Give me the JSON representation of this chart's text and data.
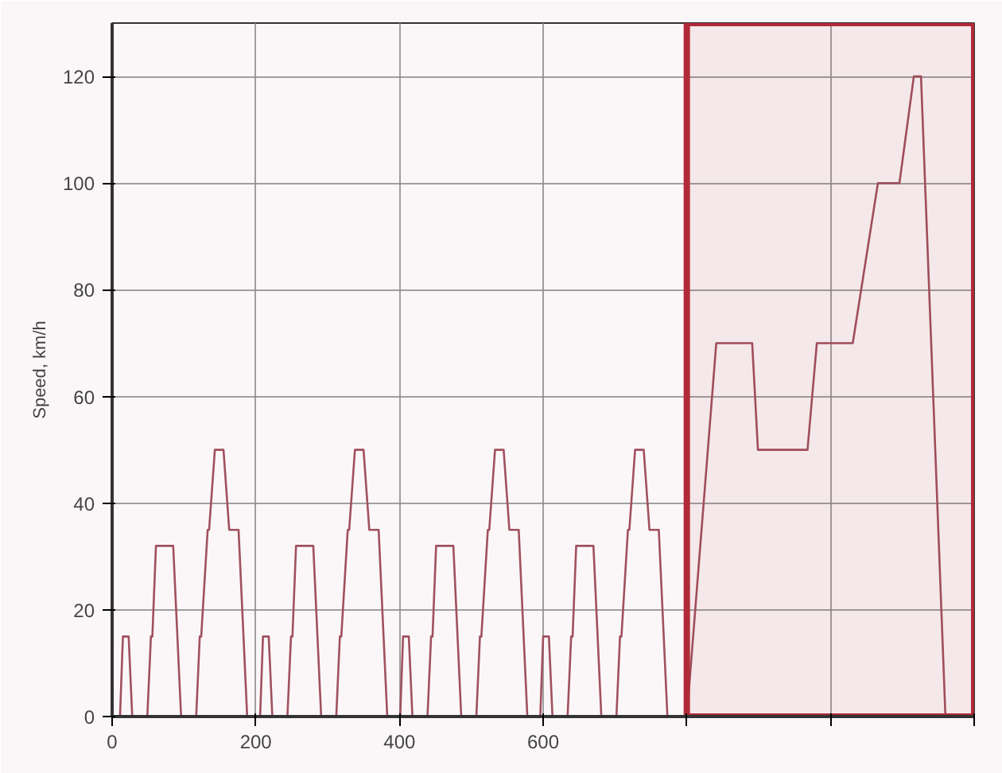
{
  "chart_data": {
    "type": "line",
    "ylabel": "Speed, km/h",
    "x": [
      0,
      11,
      15,
      23,
      28,
      49,
      54,
      56,
      61,
      85,
      96,
      117,
      122,
      124,
      133,
      135,
      143,
      155,
      163,
      176,
      188,
      195,
      206,
      210,
      218,
      223,
      244,
      249,
      251,
      256,
      280,
      291,
      312,
      317,
      319,
      328,
      330,
      338,
      350,
      358,
      371,
      383,
      390,
      401,
      405,
      413,
      418,
      439,
      444,
      446,
      451,
      475,
      486,
      507,
      512,
      514,
      523,
      525,
      533,
      545,
      553,
      566,
      578,
      585,
      596,
      600,
      608,
      613,
      634,
      639,
      641,
      646,
      670,
      681,
      702,
      707,
      709,
      718,
      720,
      728,
      740,
      748,
      761,
      773,
      780,
      800,
      841,
      891,
      899,
      968,
      981,
      1031,
      1066,
      1096,
      1116,
      1126,
      1160,
      1180
    ],
    "series": [
      {
        "color": "#a0505e",
        "values": [
          0,
          0,
          15,
          15,
          0,
          0,
          15,
          15,
          32,
          32,
          0,
          0,
          15,
          15,
          35,
          35,
          50,
          50,
          35,
          35,
          0,
          0,
          0,
          15,
          15,
          0,
          0,
          15,
          15,
          32,
          32,
          0,
          0,
          15,
          15,
          35,
          35,
          50,
          50,
          35,
          35,
          0,
          0,
          0,
          15,
          15,
          0,
          0,
          15,
          15,
          32,
          32,
          0,
          0,
          15,
          15,
          35,
          35,
          50,
          50,
          35,
          35,
          0,
          0,
          0,
          15,
          15,
          0,
          0,
          15,
          15,
          32,
          32,
          0,
          0,
          15,
          15,
          35,
          35,
          50,
          50,
          35,
          35,
          0,
          0,
          0,
          70,
          70,
          50,
          50,
          70,
          70,
          100,
          100,
          120,
          120,
          0,
          0
        ]
      }
    ],
    "xlim": [
      0,
      1200
    ],
    "ylim": [
      0,
      130
    ],
    "xticks": [
      0,
      200,
      400,
      600,
      {
        "value": 800,
        "label": null
      },
      {
        "value": 1000,
        "label": null
      },
      {
        "value": 1200,
        "label": null
      }
    ],
    "yticks": [
      0,
      20,
      40,
      60,
      80,
      100,
      120
    ],
    "grid": true,
    "marker": "none",
    "line_style": "solid",
    "bands": [
      {
        "axis": "x",
        "from": 800,
        "to": 1200,
        "color": "#b02a3a"
      }
    ]
  }
}
